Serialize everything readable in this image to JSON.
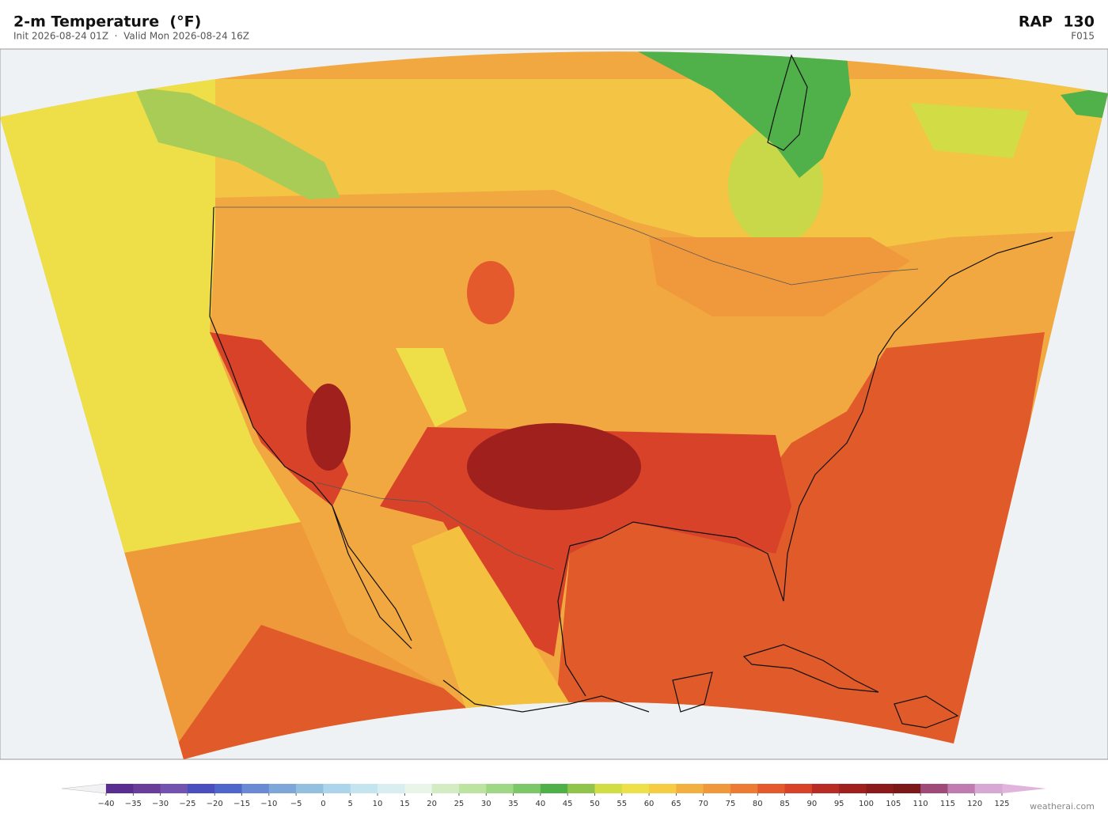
{
  "header": {
    "title": "2-m Temperature  (°F)",
    "subtitle": "Init 2026-08-24 01Z  ·  Valid Mon 2026-08-24 16Z",
    "model": "RAP  130",
    "forecast_hour": "F015"
  },
  "colorbar": {
    "ticks": [
      {
        "value": -40,
        "label": "−40"
      },
      {
        "value": -35,
        "label": "−35"
      },
      {
        "value": -30,
        "label": "−30"
      },
      {
        "value": -25,
        "label": "−25"
      },
      {
        "value": -20,
        "label": "−20"
      },
      {
        "value": -15,
        "label": "−15"
      },
      {
        "value": -10,
        "label": "−10"
      },
      {
        "value": -5,
        "label": "−5"
      },
      0,
      5,
      10,
      15,
      20,
      25,
      30,
      35,
      40,
      45,
      50,
      55,
      60,
      65,
      70,
      75,
      80,
      85,
      90,
      95,
      100,
      105,
      110,
      115,
      120,
      125
    ],
    "colors": [
      "#5a2d91",
      "#6a3d9a",
      "#7453b0",
      "#4a4fc0",
      "#4f66cc",
      "#6a8ad6",
      "#7ea6d8",
      "#94c0e0",
      "#acd4ea",
      "#c4e4f0",
      "#d8eef0",
      "#e8f5e8",
      "#d4ecc4",
      "#bce4a0",
      "#9ed884",
      "#7cc868",
      "#4fb04a",
      "#90c44a",
      "#d2dc44",
      "#eee048",
      "#f6cc44",
      "#f2b040",
      "#f0983c",
      "#ec7c34",
      "#e45a2c",
      "#d84228",
      "#b82c24",
      "#a0201e",
      "#8c1a1a",
      "#7c1818",
      "#a04a7a",
      "#c07cb0",
      "#d8a8d4"
    ],
    "under_color": "#f2f2f4",
    "over_color": "#e0b4dc"
  },
  "footer": {
    "watermark": "weatherai.com"
  }
}
